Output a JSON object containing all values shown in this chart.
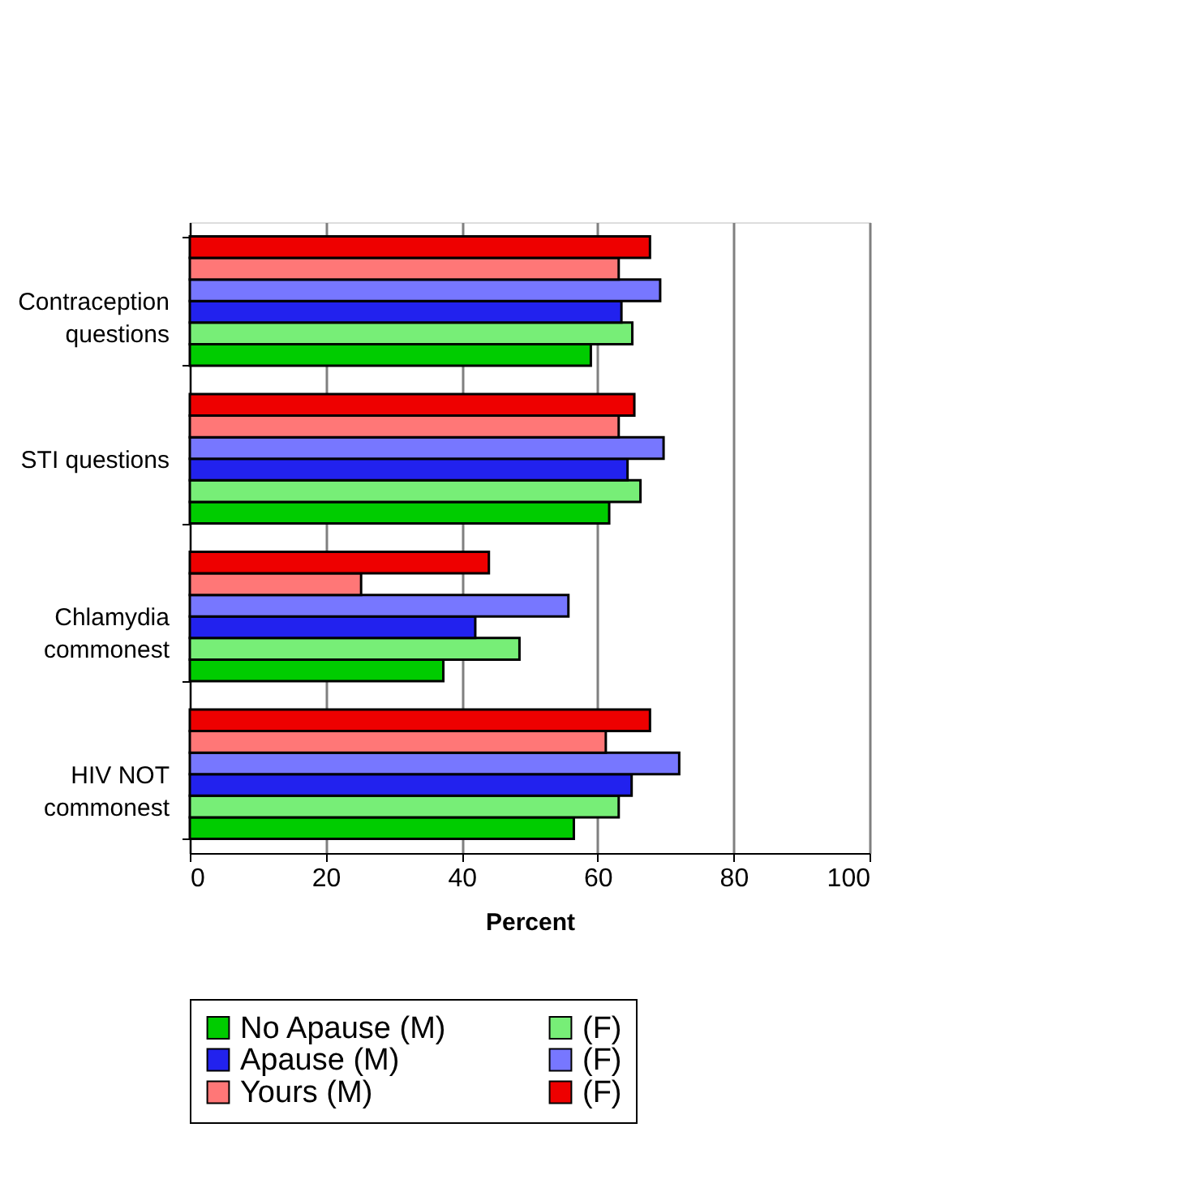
{
  "chart_data": {
    "type": "bar",
    "orientation": "horizontal",
    "categories": [
      "Contraception\nquestions",
      "STI questions",
      "Chlamydia\ncommonest",
      "HIV NOT\ncommonest"
    ],
    "series": [
      {
        "name": "No Apause (M)",
        "color": "#00cc00",
        "values": [
          59.0,
          61.7,
          37.3,
          56.5
        ]
      },
      {
        "name": "(F)",
        "color": "#77ee77",
        "values": [
          65.1,
          66.3,
          48.5,
          63.1
        ]
      },
      {
        "name": "Apause (M)",
        "color": "#2222ee",
        "values": [
          63.5,
          64.4,
          42.0,
          65.0
        ]
      },
      {
        "name": "(F)",
        "color": "#7777ff",
        "values": [
          69.2,
          69.7,
          55.7,
          72.0
        ]
      },
      {
        "name": "Yours (M)",
        "color": "#ff7777",
        "values": [
          63.1,
          63.1,
          25.2,
          61.2
        ]
      },
      {
        "name": "(F)",
        "color": "#ee0000",
        "values": [
          67.7,
          65.4,
          44.0,
          67.7
        ]
      }
    ],
    "xlim": [
      0,
      100
    ],
    "xticks": [
      0,
      20,
      40,
      60,
      80,
      100
    ],
    "xlabel": "Percent",
    "grid": "x",
    "legend": "bottom"
  }
}
